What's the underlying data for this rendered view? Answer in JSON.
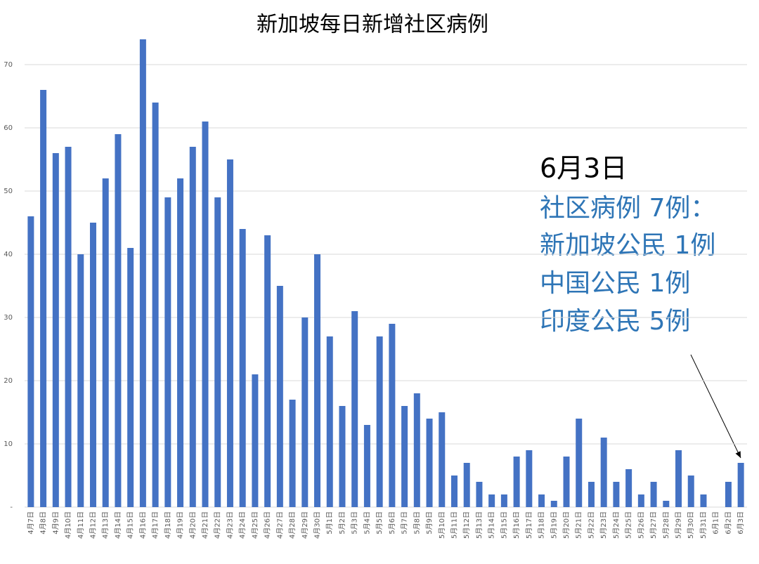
{
  "chart_data": {
    "type": "bar",
    "title": "新加坡每日新增社区病例",
    "categories": [
      "4月7日",
      "4月8日",
      "4月9日",
      "4月10日",
      "4月11日",
      "4月12日",
      "4月13日",
      "4月14日",
      "4月15日",
      "4月16日",
      "4月17日",
      "4月18日",
      "4月19日",
      "4月20日",
      "4月21日",
      "4月22日",
      "4月23日",
      "4月24日",
      "4月25日",
      "4月26日",
      "4月27日",
      "4月28日",
      "4月29日",
      "4月30日",
      "5月1日",
      "5月2日",
      "5月3日",
      "5月4日",
      "5月5日",
      "5月6日",
      "5月7日",
      "5月8日",
      "5月9日",
      "5月10日",
      "5月11日",
      "5月12日",
      "5月13日",
      "5月14日",
      "5月15日",
      "5月16日",
      "5月17日",
      "5月18日",
      "5月19日",
      "5月20日",
      "5月21日",
      "5月22日",
      "5月23日",
      "5月24日",
      "5月25日",
      "5月26日",
      "5月27日",
      "5月28日",
      "5月29日",
      "5月30日",
      "5月31日",
      "6月1日",
      "6月2日",
      "6月3日"
    ],
    "values": [
      46,
      66,
      56,
      57,
      40,
      45,
      52,
      59,
      41,
      74,
      64,
      49,
      52,
      57,
      61,
      49,
      55,
      44,
      21,
      43,
      35,
      17,
      30,
      40,
      27,
      16,
      31,
      13,
      27,
      29,
      16,
      18,
      14,
      15,
      5,
      7,
      4,
      2,
      2,
      8,
      9,
      2,
      1,
      8,
      14,
      4,
      11,
      4,
      6,
      2,
      4,
      1,
      9,
      5,
      2,
      0,
      4,
      7
    ],
    "color": "#4472c4",
    "ylim": [
      0,
      75
    ],
    "yticks": [
      {
        "value": 0,
        "label": "-"
      },
      10,
      20,
      30,
      40,
      50,
      60,
      70
    ],
    "grid": true,
    "annotations": [
      "6月3日",
      "社区病例 7例：",
      "新加坡公民 1例",
      "中国公民 1例",
      "印度公民 5例"
    ]
  }
}
